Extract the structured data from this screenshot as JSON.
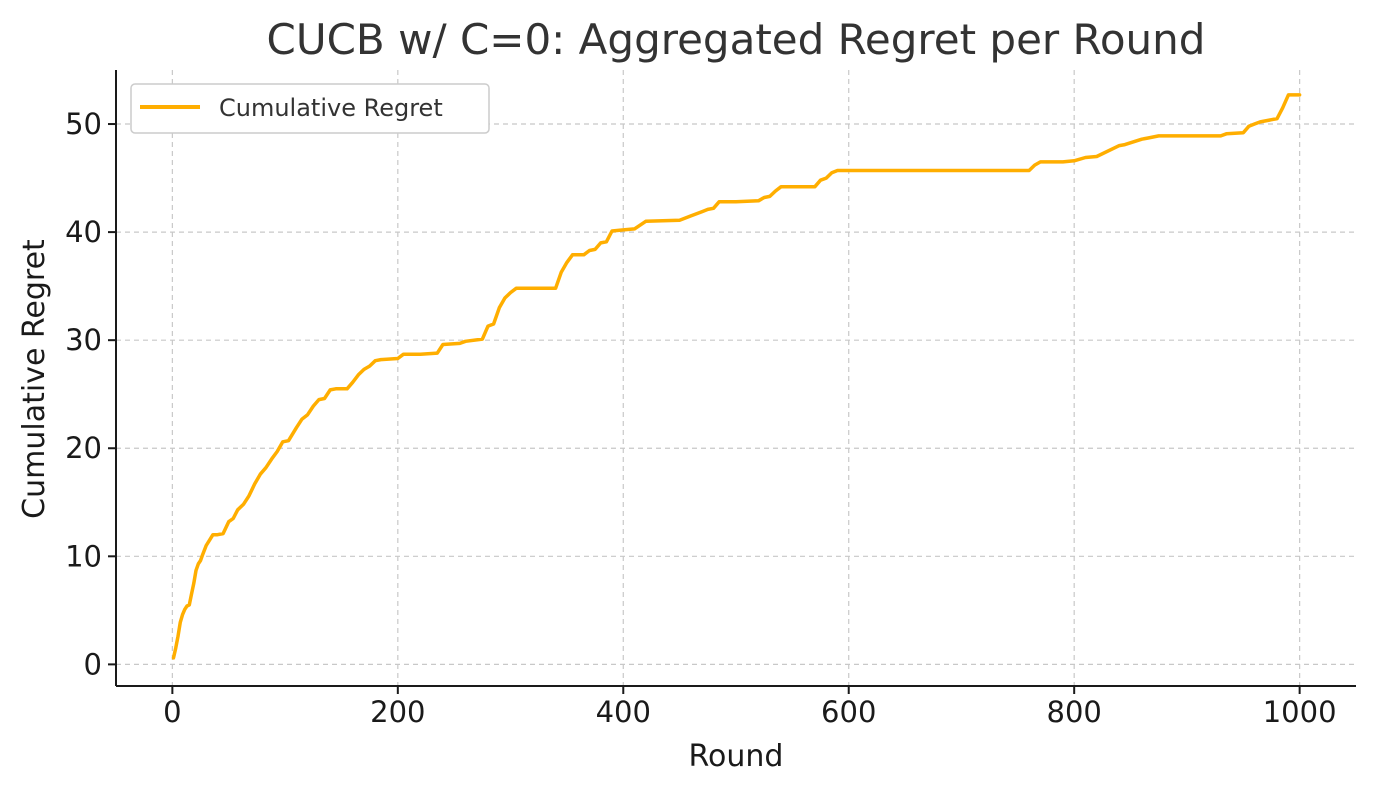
{
  "chart_data": {
    "type": "line",
    "title": "CUCB w/ C=0: Aggregated Regret per Round",
    "xlabel": "Round",
    "ylabel": "Cumulative Regret",
    "xlim": [
      -50,
      1050
    ],
    "ylim": [
      -2,
      55
    ],
    "xticks": [
      0,
      200,
      400,
      600,
      800,
      1000
    ],
    "yticks": [
      0,
      10,
      20,
      30,
      40,
      50
    ],
    "grid": true,
    "legend_position": "top-left",
    "series": [
      {
        "name": "Cumulative Regret",
        "color": "#FFAE00",
        "x": [
          1,
          3,
          5,
          7,
          9,
          11,
          13,
          15,
          17,
          19,
          21,
          23,
          25,
          27,
          30,
          33,
          36,
          40,
          45,
          50,
          54,
          58,
          63,
          68,
          73,
          78,
          83,
          88,
          93,
          98,
          103,
          110,
          115,
          120,
          125,
          130,
          135,
          140,
          145,
          155,
          160,
          165,
          170,
          175,
          180,
          185,
          200,
          205,
          220,
          235,
          240,
          255,
          260,
          275,
          280,
          285,
          290,
          295,
          300,
          305,
          310,
          320,
          330,
          340,
          345,
          350,
          355,
          365,
          370,
          375,
          380,
          385,
          390,
          400,
          410,
          420,
          450,
          460,
          470,
          475,
          480,
          485,
          500,
          520,
          525,
          530,
          535,
          540,
          550,
          570,
          575,
          580,
          585,
          590,
          595,
          640,
          700,
          760,
          765,
          770,
          775,
          790,
          800,
          810,
          820,
          840,
          845,
          860,
          865,
          875,
          880,
          900,
          930,
          935,
          950,
          955,
          960,
          965,
          975,
          980,
          985,
          990,
          1000
        ],
        "y": [
          0.6,
          1.5,
          2.6,
          3.9,
          4.6,
          5.1,
          5.4,
          5.5,
          6.5,
          7.5,
          8.7,
          9.3,
          9.6,
          10.2,
          11.0,
          11.5,
          12.0,
          12.0,
          12.1,
          13.2,
          13.5,
          14.3,
          14.8,
          15.6,
          16.7,
          17.6,
          18.2,
          19.0,
          19.7,
          20.6,
          20.7,
          21.9,
          22.7,
          23.1,
          23.9,
          24.5,
          24.6,
          25.4,
          25.5,
          25.5,
          26.1,
          26.8,
          27.3,
          27.6,
          28.1,
          28.2,
          28.3,
          28.7,
          28.7,
          28.8,
          29.6,
          29.7,
          29.9,
          30.1,
          31.3,
          31.5,
          33.0,
          33.9,
          34.4,
          34.8,
          34.8,
          34.8,
          34.8,
          34.8,
          36.3,
          37.2,
          37.9,
          37.9,
          38.3,
          38.4,
          39.0,
          39.1,
          40.1,
          40.2,
          40.3,
          41.0,
          41.1,
          41.5,
          41.9,
          42.1,
          42.2,
          42.8,
          42.8,
          42.9,
          43.2,
          43.3,
          43.8,
          44.2,
          44.2,
          44.2,
          44.8,
          45.0,
          45.5,
          45.7,
          45.7,
          45.7,
          45.7,
          45.7,
          46.2,
          46.5,
          46.5,
          46.5,
          46.6,
          46.9,
          47.0,
          48.0,
          48.1,
          48.6,
          48.7,
          48.9,
          48.9,
          48.9,
          48.9,
          49.1,
          49.2,
          49.8,
          50.0,
          50.2,
          50.4,
          50.5,
          51.5,
          52.7,
          52.7
        ]
      }
    ]
  }
}
